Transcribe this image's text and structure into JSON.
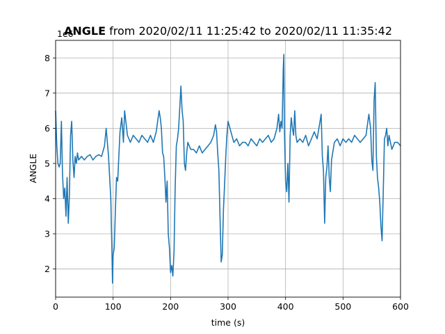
{
  "chart_data": {
    "type": "line",
    "title_bold": "ANGLE",
    "title_rest": " from 2020/02/11 11:25:42 to 2020/02/11 11:35:42",
    "xlabel": "time (s)",
    "ylabel": "ANGLE",
    "offset_label": "1e6",
    "xlim": [
      0,
      600
    ],
    "ylim": [
      1.2,
      8.5
    ],
    "xticks": [
      0,
      100,
      200,
      300,
      400,
      500,
      600
    ],
    "yticks": [
      2,
      3,
      4,
      5,
      6,
      7,
      8
    ],
    "grid": true,
    "line_color": "#1f77b4",
    "series": [
      {
        "x": [
          0,
          2,
          4,
          6,
          8,
          10,
          12,
          14,
          16,
          18,
          20,
          22,
          24,
          26,
          28,
          30,
          32,
          34,
          36,
          38,
          40,
          45,
          50,
          55,
          60,
          65,
          70,
          75,
          80,
          85,
          88,
          90,
          92,
          94,
          96,
          97,
          98,
          99,
          100,
          102,
          104,
          106,
          108,
          110,
          112,
          115,
          118,
          120,
          125,
          130,
          135,
          140,
          145,
          150,
          155,
          160,
          165,
          170,
          175,
          180,
          182,
          184,
          186,
          188,
          190,
          192,
          194,
          196,
          198,
          200,
          202,
          204,
          206,
          208,
          210,
          212,
          214,
          216,
          218,
          220,
          222,
          224,
          226,
          228,
          230,
          235,
          240,
          245,
          250,
          255,
          260,
          265,
          270,
          275,
          278,
          280,
          282,
          284,
          286,
          288,
          290,
          292,
          294,
          296,
          298,
          300,
          305,
          310,
          315,
          320,
          325,
          330,
          335,
          340,
          345,
          350,
          355,
          360,
          365,
          370,
          375,
          380,
          385,
          388,
          390,
          392,
          394,
          396,
          397,
          398,
          400,
          402,
          404,
          406,
          408,
          410,
          412,
          414,
          416,
          418,
          420,
          425,
          430,
          435,
          440,
          445,
          450,
          455,
          460,
          462,
          464,
          466,
          468,
          470,
          472,
          474,
          476,
          478,
          480,
          485,
          490,
          495,
          500,
          505,
          510,
          515,
          520,
          525,
          530,
          535,
          540,
          545,
          548,
          550,
          552,
          554,
          556,
          558,
          560,
          562,
          564,
          566,
          568,
          570,
          572,
          574,
          576,
          578,
          580,
          585,
          590,
          595,
          600
        ],
        "y": [
          6.5,
          5.5,
          5.0,
          4.9,
          5.0,
          6.2,
          4.7,
          4.0,
          4.3,
          3.5,
          4.6,
          3.3,
          4.1,
          5.8,
          6.2,
          5.1,
          4.6,
          5.2,
          5.0,
          5.3,
          5.1,
          5.2,
          5.1,
          5.2,
          5.25,
          5.1,
          5.2,
          5.25,
          5.2,
          5.5,
          6.0,
          5.6,
          5.2,
          4.6,
          4.0,
          3.2,
          2.5,
          1.6,
          2.4,
          2.6,
          3.7,
          4.6,
          4.5,
          5.2,
          5.9,
          6.3,
          5.6,
          6.5,
          5.8,
          5.6,
          5.8,
          5.7,
          5.6,
          5.8,
          5.7,
          5.6,
          5.8,
          5.6,
          5.9,
          6.5,
          6.3,
          6.0,
          5.3,
          5.2,
          4.6,
          3.9,
          4.5,
          3.0,
          2.6,
          1.9,
          2.1,
          1.8,
          2.5,
          4.3,
          5.5,
          5.7,
          6.0,
          6.6,
          7.2,
          6.5,
          6.2,
          5.0,
          4.8,
          5.3,
          5.6,
          5.4,
          5.4,
          5.3,
          5.5,
          5.3,
          5.4,
          5.5,
          5.6,
          5.8,
          6.1,
          5.9,
          5.3,
          4.8,
          3.5,
          2.2,
          2.4,
          3.7,
          4.4,
          5.2,
          5.8,
          6.2,
          5.9,
          5.6,
          5.7,
          5.5,
          5.6,
          5.6,
          5.5,
          5.7,
          5.6,
          5.5,
          5.7,
          5.6,
          5.7,
          5.8,
          5.6,
          5.7,
          6.0,
          6.4,
          5.9,
          6.2,
          6.0,
          7.7,
          8.1,
          6.0,
          4.5,
          4.2,
          5.0,
          3.9,
          5.8,
          6.3,
          6.0,
          5.8,
          6.5,
          5.8,
          5.6,
          5.7,
          5.6,
          5.8,
          5.5,
          5.7,
          5.9,
          5.7,
          6.2,
          6.4,
          5.2,
          4.8,
          3.3,
          4.6,
          4.9,
          5.5,
          4.6,
          4.2,
          5.1,
          5.6,
          5.7,
          5.5,
          5.7,
          5.6,
          5.7,
          5.6,
          5.8,
          5.7,
          5.6,
          5.7,
          5.8,
          6.4,
          6.0,
          5.1,
          4.8,
          6.8,
          7.3,
          5.2,
          4.6,
          4.3,
          3.9,
          3.2,
          2.8,
          4.2,
          5.7,
          5.8,
          6.0,
          5.5,
          5.8,
          5.4,
          5.6,
          5.6,
          5.5
        ]
      }
    ]
  }
}
